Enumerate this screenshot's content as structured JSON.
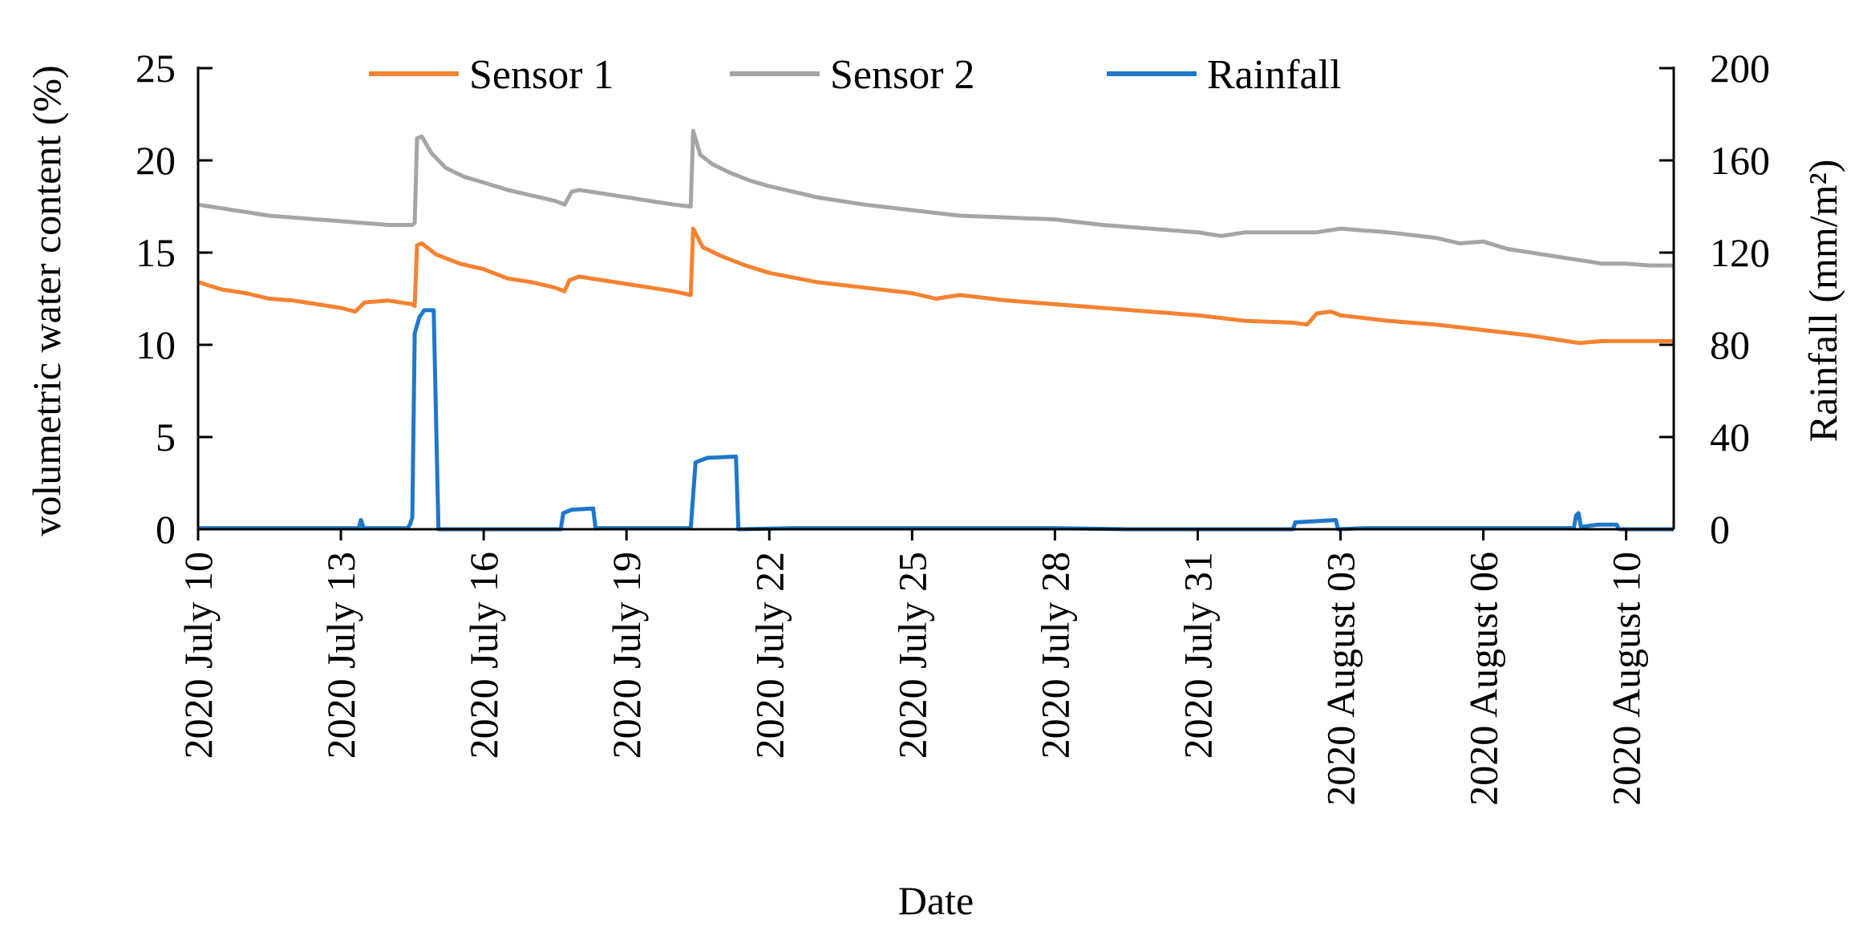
{
  "chart_data": {
    "type": "line",
    "title": "",
    "xlabel": "Date",
    "ylabel": "volumetric water content (%)",
    "y2label": "Rainfall (mm/m²)",
    "xlim": [
      0,
      31
    ],
    "ylim": [
      0,
      25
    ],
    "y2lim": [
      0,
      200
    ],
    "yticks": [
      "0",
      "5",
      "10",
      "15",
      "20",
      "25"
    ],
    "y2ticks": [
      "0",
      "40",
      "80",
      "120",
      "160",
      "200"
    ],
    "xticks": [
      {
        "day": 0,
        "label": "2020 July 10"
      },
      {
        "day": 3,
        "label": "2020 July 13"
      },
      {
        "day": 6,
        "label": "2020 July 16"
      },
      {
        "day": 9,
        "label": "2020 July 19"
      },
      {
        "day": 12,
        "label": "2020 July 22"
      },
      {
        "day": 15,
        "label": "2020 July 25"
      },
      {
        "day": 18,
        "label": "2020 July 28"
      },
      {
        "day": 21,
        "label": "2020 July 31"
      },
      {
        "day": 24,
        "label": "2020 August 03"
      },
      {
        "day": 27,
        "label": "2020 August 06"
      },
      {
        "day": 30,
        "label": "2020 August 10"
      }
    ],
    "legend_position": "top",
    "series": [
      {
        "name": "Sensor 1",
        "axis": "left",
        "color": "#F58231",
        "points": [
          [
            0,
            13.4
          ],
          [
            0.5,
            13
          ],
          [
            1,
            12.8
          ],
          [
            1.5,
            12.5
          ],
          [
            2,
            12.4
          ],
          [
            2.5,
            12.2
          ],
          [
            3,
            12
          ],
          [
            3.3,
            11.8
          ],
          [
            3.5,
            12.3
          ],
          [
            4,
            12.4
          ],
          [
            4.5,
            12.2
          ],
          [
            4.55,
            12.1
          ],
          [
            4.6,
            15.4
          ],
          [
            4.7,
            15.5
          ],
          [
            5,
            14.9
          ],
          [
            5.5,
            14.4
          ],
          [
            6,
            14.1
          ],
          [
            6.5,
            13.6
          ],
          [
            7,
            13.4
          ],
          [
            7.5,
            13.1
          ],
          [
            7.7,
            12.9
          ],
          [
            7.8,
            13.5
          ],
          [
            8,
            13.7
          ],
          [
            8.5,
            13.5
          ],
          [
            9,
            13.3
          ],
          [
            9.5,
            13.1
          ],
          [
            10,
            12.9
          ],
          [
            10.35,
            12.7
          ],
          [
            10.4,
            16.3
          ],
          [
            10.6,
            15.3
          ],
          [
            11,
            14.8
          ],
          [
            11.5,
            14.3
          ],
          [
            12,
            13.9
          ],
          [
            13,
            13.4
          ],
          [
            14,
            13.1
          ],
          [
            15,
            12.8
          ],
          [
            15.5,
            12.5
          ],
          [
            16,
            12.7
          ],
          [
            17,
            12.4
          ],
          [
            18,
            12.2
          ],
          [
            19,
            12
          ],
          [
            20,
            11.8
          ],
          [
            21,
            11.6
          ],
          [
            22,
            11.3
          ],
          [
            23,
            11.2
          ],
          [
            23.3,
            11.1
          ],
          [
            23.5,
            11.7
          ],
          [
            23.8,
            11.8
          ],
          [
            24,
            11.6
          ],
          [
            25,
            11.3
          ],
          [
            26,
            11.1
          ],
          [
            27,
            10.8
          ],
          [
            28,
            10.5
          ],
          [
            29,
            10.1
          ],
          [
            29.5,
            10.2
          ],
          [
            30,
            10.2
          ],
          [
            31,
            10.2
          ]
        ]
      },
      {
        "name": "Sensor  2",
        "axis": "left",
        "color": "#A5A5A5",
        "points": [
          [
            0,
            17.6
          ],
          [
            0.5,
            17.4
          ],
          [
            1,
            17.2
          ],
          [
            1.5,
            17
          ],
          [
            2,
            16.9
          ],
          [
            2.5,
            16.8
          ],
          [
            3,
            16.7
          ],
          [
            3.5,
            16.6
          ],
          [
            4,
            16.5
          ],
          [
            4.5,
            16.5
          ],
          [
            4.55,
            16.6
          ],
          [
            4.6,
            21.2
          ],
          [
            4.7,
            21.3
          ],
          [
            4.9,
            20.4
          ],
          [
            5.2,
            19.6
          ],
          [
            5.6,
            19.1
          ],
          [
            6,
            18.8
          ],
          [
            6.5,
            18.4
          ],
          [
            7,
            18.1
          ],
          [
            7.5,
            17.8
          ],
          [
            7.7,
            17.6
          ],
          [
            7.85,
            18.3
          ],
          [
            8,
            18.4
          ],
          [
            8.5,
            18.2
          ],
          [
            9,
            18
          ],
          [
            9.5,
            17.8
          ],
          [
            10,
            17.6
          ],
          [
            10.35,
            17.5
          ],
          [
            10.4,
            21.6
          ],
          [
            10.55,
            20.3
          ],
          [
            10.8,
            19.8
          ],
          [
            11.2,
            19.3
          ],
          [
            11.6,
            18.9
          ],
          [
            12,
            18.6
          ],
          [
            12.5,
            18.3
          ],
          [
            13,
            18
          ],
          [
            14,
            17.6
          ],
          [
            15,
            17.3
          ],
          [
            16,
            17
          ],
          [
            17,
            16.9
          ],
          [
            18,
            16.8
          ],
          [
            19,
            16.5
          ],
          [
            20,
            16.3
          ],
          [
            21,
            16.1
          ],
          [
            21.5,
            15.9
          ],
          [
            22,
            16.1
          ],
          [
            23,
            16.1
          ],
          [
            23.5,
            16.1
          ],
          [
            24,
            16.3
          ],
          [
            25,
            16.1
          ],
          [
            26,
            15.8
          ],
          [
            26.5,
            15.5
          ],
          [
            27,
            15.6
          ],
          [
            27.5,
            15.2
          ],
          [
            28,
            15
          ],
          [
            29,
            14.6
          ],
          [
            29.5,
            14.4
          ],
          [
            30,
            14.4
          ],
          [
            30.5,
            14.3
          ],
          [
            31,
            14.3
          ]
        ]
      },
      {
        "name": "Rainfall",
        "axis": "right",
        "color": "#1F77C9",
        "points": [
          [
            0,
            0.5
          ],
          [
            2,
            0.5
          ],
          [
            3.38,
            0.5
          ],
          [
            3.42,
            4
          ],
          [
            3.48,
            0.5
          ],
          [
            4.4,
            0.5
          ],
          [
            4.45,
            2
          ],
          [
            4.5,
            5
          ],
          [
            4.55,
            85
          ],
          [
            4.65,
            92
          ],
          [
            4.75,
            95
          ],
          [
            4.95,
            95
          ],
          [
            5.05,
            0
          ],
          [
            7.5,
            0
          ],
          [
            7.62,
            0
          ],
          [
            7.67,
            7
          ],
          [
            7.85,
            8.5
          ],
          [
            8.3,
            9
          ],
          [
            8.35,
            0.5
          ],
          [
            10.35,
            0.5
          ],
          [
            10.45,
            29
          ],
          [
            10.7,
            31
          ],
          [
            11.3,
            31.5
          ],
          [
            11.35,
            0
          ],
          [
            12.5,
            0.5
          ],
          [
            14,
            0.5
          ],
          [
            16,
            0.5
          ],
          [
            18,
            0.5
          ],
          [
            19.5,
            0
          ],
          [
            23,
            0
          ],
          [
            23.05,
            3
          ],
          [
            23.5,
            3.5
          ],
          [
            23.9,
            4
          ],
          [
            23.95,
            0
          ],
          [
            24.5,
            0.5
          ],
          [
            26,
            0.5
          ],
          [
            28,
            0.5
          ],
          [
            28.9,
            0.5
          ],
          [
            28.95,
            6
          ],
          [
            29,
            7
          ],
          [
            29.05,
            1
          ],
          [
            29.4,
            2
          ],
          [
            29.8,
            2
          ],
          [
            29.85,
            0
          ],
          [
            31,
            0
          ]
        ]
      }
    ]
  }
}
